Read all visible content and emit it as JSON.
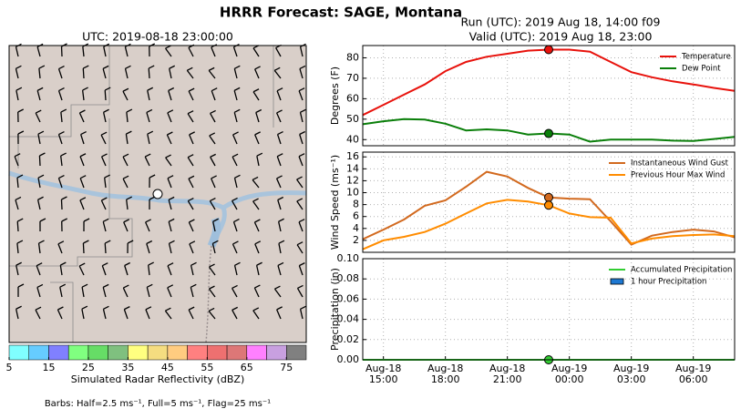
{
  "title": "HRRR Forecast: SAGE, Montana",
  "chart_data": [
    {
      "type": "map",
      "title": "UTC: 2019-08-18 23:00:00",
      "colorbar": {
        "label": "Simulated Radar Reflectivity (dBZ)",
        "lim": [
          5,
          80
        ],
        "ticks": [
          5,
          15,
          25,
          35,
          45,
          55,
          65,
          75
        ],
        "colors": [
          "#80ffff",
          "#66ccff",
          "#8080ff",
          "#80ff80",
          "#66dd66",
          "#7fc07f",
          "#ffff80",
          "#f5dd80",
          "#ffcc80",
          "#ff8080",
          "#ee7070",
          "#dd7777",
          "#ff80ff",
          "#c8a0e0",
          "#808080"
        ]
      },
      "note": "Barbs: Half=2.5 ms⁻¹, Full=5 ms⁻¹, Flag=25 ms⁻¹"
    },
    {
      "type": "line",
      "title": [
        "Run (UTC): 2019 Aug 18, 14:00 f09",
        "Valid (UTC): 2019 Aug 18, 23:00"
      ],
      "ylabel": "Degrees (F)",
      "xlim": [
        "Aug-18 14:00",
        "Aug-19 08:00"
      ],
      "ylim": [
        37,
        86
      ],
      "yticks": [
        40,
        50,
        60,
        70,
        80
      ],
      "grid": true,
      "marker_at": "Aug-18 23:00",
      "x": [
        "Aug-18 14:00",
        "Aug-18 15:00",
        "Aug-18 16:00",
        "Aug-18 17:00",
        "Aug-18 18:00",
        "Aug-18 19:00",
        "Aug-18 20:00",
        "Aug-18 21:00",
        "Aug-18 22:00",
        "Aug-18 23:00",
        "Aug-19 00:00",
        "Aug-19 01:00",
        "Aug-19 02:00",
        "Aug-19 03:00",
        "Aug-19 04:00",
        "Aug-19 05:00",
        "Aug-19 06:00",
        "Aug-19 07:00",
        "Aug-19 08:00"
      ],
      "series": [
        {
          "name": "Temperature",
          "color": "#e8120c",
          "kind": "line",
          "values": [
            52,
            57,
            62,
            67,
            73.5,
            78,
            80.5,
            82,
            83.5,
            84,
            84,
            83,
            78,
            73,
            70.5,
            68.5,
            67,
            65.3,
            63.8
          ]
        },
        {
          "name": "Dew Point",
          "color": "#0a7f0a",
          "kind": "line",
          "values": [
            47.5,
            49,
            50,
            49.8,
            47.8,
            44.5,
            45,
            44.5,
            42.5,
            43,
            42.5,
            39,
            40,
            40,
            40,
            39.5,
            39.3,
            40.3,
            41.3
          ]
        }
      ]
    },
    {
      "type": "line",
      "ylabel": "Wind Speed (ms⁻¹)",
      "xlim": [
        "Aug-18 14:00",
        "Aug-19 08:00"
      ],
      "ylim": [
        0,
        16.8
      ],
      "yticks": [
        2,
        4,
        6,
        8,
        10,
        12,
        14,
        16
      ],
      "grid": true,
      "marker_at": "Aug-18 23:00",
      "x": [
        "Aug-18 14:00",
        "Aug-18 15:00",
        "Aug-18 16:00",
        "Aug-18 17:00",
        "Aug-18 18:00",
        "Aug-18 19:00",
        "Aug-18 20:00",
        "Aug-18 21:00",
        "Aug-18 22:00",
        "Aug-18 23:00",
        "Aug-19 00:00",
        "Aug-19 01:00",
        "Aug-19 02:00",
        "Aug-19 03:00",
        "Aug-19 04:00",
        "Aug-19 05:00",
        "Aug-19 06:00",
        "Aug-19 07:00",
        "Aug-19 08:00"
      ],
      "series": [
        {
          "name": "Instantaneous Wind Gust",
          "color": "#d2691e",
          "kind": "line",
          "values": [
            2.2,
            3.8,
            5.5,
            7.8,
            8.7,
            11,
            13.5,
            12.7,
            10.8,
            9.2,
            9.0,
            8.9,
            5.2,
            1.3,
            2.8,
            3.4,
            3.8,
            3.5,
            2.5
          ]
        },
        {
          "name": "Previous Hour Max Wind",
          "color": "#ff8c00",
          "kind": "line",
          "values": [
            0.5,
            2,
            2.6,
            3.4,
            4.8,
            6.5,
            8.2,
            8.8,
            8.5,
            7.9,
            6.5,
            5.9,
            5.8,
            1.5,
            2.3,
            2.7,
            2.9,
            3.0,
            2.7
          ]
        }
      ]
    },
    {
      "type": "line",
      "ylabel": "Precipitation (in)",
      "xlim": [
        "Aug-18 14:00",
        "Aug-19 08:00"
      ],
      "ylim": [
        0,
        0.1
      ],
      "yticks": [
        {
          "value": 0,
          "label": "0.00"
        },
        {
          "value": 0.02,
          "label": "0.02"
        },
        {
          "value": 0.04,
          "label": "0.04"
        },
        {
          "value": 0.06,
          "label": "0.06"
        },
        {
          "value": 0.08,
          "label": "0.08"
        },
        {
          "value": 0.1,
          "label": "0.10"
        }
      ],
      "xticks": [
        "Aug-18 15:00",
        "Aug-18 18:00",
        "Aug-18 21:00",
        "Aug-19 00:00",
        "Aug-19 03:00",
        "Aug-19 06:00"
      ],
      "grid": true,
      "marker_at": "Aug-18 23:00",
      "x": [
        "Aug-18 14:00",
        "Aug-18 15:00",
        "Aug-18 16:00",
        "Aug-18 17:00",
        "Aug-18 18:00",
        "Aug-18 19:00",
        "Aug-18 20:00",
        "Aug-18 21:00",
        "Aug-18 22:00",
        "Aug-18 23:00",
        "Aug-19 00:00",
        "Aug-19 01:00",
        "Aug-19 02:00",
        "Aug-19 03:00",
        "Aug-19 04:00",
        "Aug-19 05:00",
        "Aug-19 06:00",
        "Aug-19 07:00",
        "Aug-19 08:00"
      ],
      "series": [
        {
          "name": "Accumulated Precipitation",
          "color": "#32cd32",
          "kind": "line",
          "values": [
            0,
            0,
            0,
            0,
            0,
            0,
            0,
            0,
            0,
            0,
            0,
            0,
            0,
            0,
            0,
            0,
            0,
            0,
            0
          ]
        },
        {
          "name": "1 hour Precipitation",
          "color": "#1e78d2",
          "kind": "bar",
          "values": [
            0,
            0,
            0,
            0,
            0,
            0,
            0,
            0,
            0,
            0,
            0,
            0,
            0,
            0,
            0,
            0,
            0,
            0,
            0
          ]
        }
      ]
    }
  ]
}
